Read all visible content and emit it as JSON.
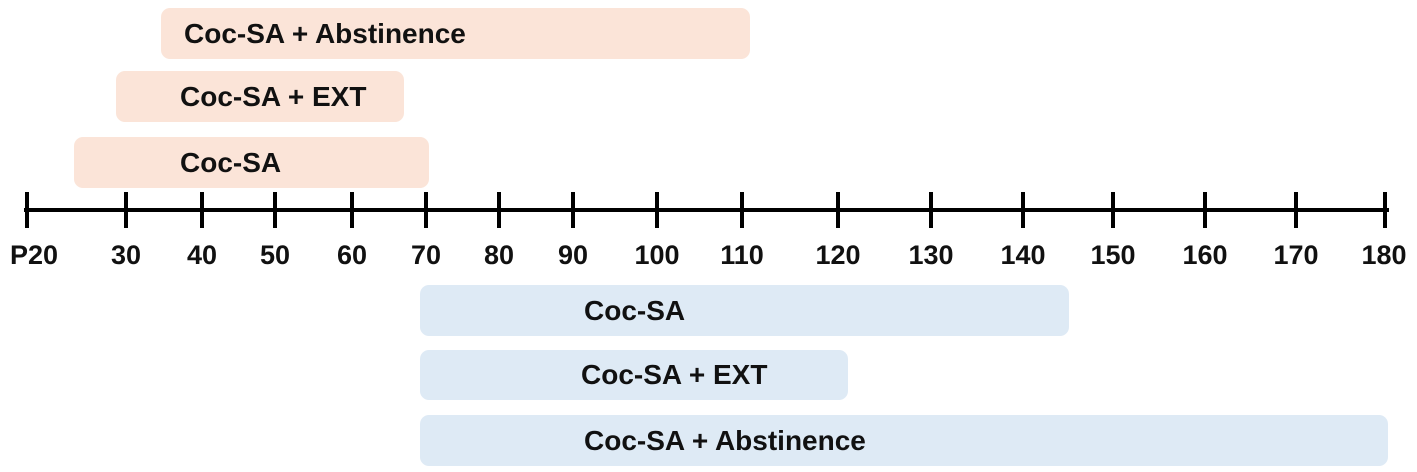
{
  "colors": {
    "top_bar": "#fbe4d8",
    "bottom_bar": "#deeaf5",
    "axis": "#000000"
  },
  "top_groups": [
    {
      "label": "Coc-SA + Abstinence"
    },
    {
      "label": "Coc-SA + EXT"
    },
    {
      "label": "Coc-SA"
    }
  ],
  "axis": {
    "ticks": [
      "P20",
      "30",
      "40",
      "50",
      "60",
      "70",
      "80",
      "90",
      "100",
      "110",
      "120",
      "130",
      "140",
      "150",
      "160",
      "170",
      "180"
    ]
  },
  "bottom_groups": [
    {
      "label": "Coc-SA"
    },
    {
      "label": "Coc-SA + EXT"
    },
    {
      "label": "Coc-SA + Abstinence"
    }
  ]
}
